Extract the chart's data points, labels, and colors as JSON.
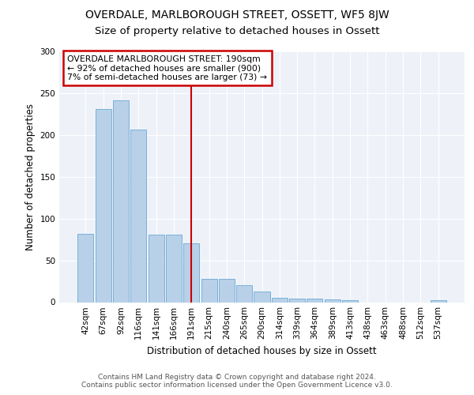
{
  "title1": "OVERDALE, MARLBOROUGH STREET, OSSETT, WF5 8JW",
  "title2": "Size of property relative to detached houses in Ossett",
  "xlabel": "Distribution of detached houses by size in Ossett",
  "ylabel": "Number of detached properties",
  "categories": [
    "42sqm",
    "67sqm",
    "92sqm",
    "116sqm",
    "141sqm",
    "166sqm",
    "191sqm",
    "215sqm",
    "240sqm",
    "265sqm",
    "290sqm",
    "314sqm",
    "339sqm",
    "364sqm",
    "389sqm",
    "413sqm",
    "438sqm",
    "463sqm",
    "488sqm",
    "512sqm",
    "537sqm"
  ],
  "values": [
    82,
    231,
    241,
    206,
    81,
    81,
    70,
    28,
    28,
    20,
    13,
    5,
    4,
    4,
    3,
    2,
    0,
    0,
    0,
    0,
    2
  ],
  "bar_color": "#b8d0e8",
  "bar_edge_color": "#6aaad4",
  "vline_x_idx": 6,
  "vline_color": "#cc0000",
  "annotation_text": "OVERDALE MARLBOROUGH STREET: 190sqm\n← 92% of detached houses are smaller (900)\n7% of semi-detached houses are larger (73) →",
  "annotation_box_color": "#cc0000",
  "ylim": [
    0,
    300
  ],
  "yticks": [
    0,
    50,
    100,
    150,
    200,
    250,
    300
  ],
  "footnote": "Contains HM Land Registry data © Crown copyright and database right 2024.\nContains public sector information licensed under the Open Government Licence v3.0.",
  "fig_facecolor": "#ffffff",
  "plot_facecolor": "#eef2f8",
  "grid_color": "#ffffff",
  "title1_fontsize": 10,
  "title2_fontsize": 9.5,
  "tick_fontsize": 7.5,
  "label_fontsize": 8.5,
  "footnote_fontsize": 6.5
}
